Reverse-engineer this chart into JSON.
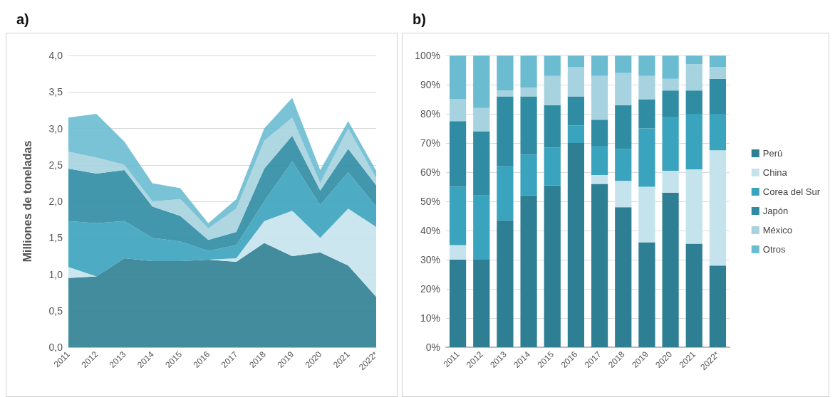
{
  "chart_data": [
    {
      "type": "area",
      "title": "a)",
      "ylabel": "Milliones de toneladas",
      "stacked": true,
      "grid": "y",
      "categories": [
        "2011",
        "2012",
        "2013",
        "2014",
        "2015",
        "2016",
        "2017",
        "2018",
        "2019",
        "2020",
        "2021",
        "2022*"
      ],
      "ylim": [
        0,
        4
      ],
      "yticks": [
        {
          "value": 0,
          "label": "0,0"
        },
        {
          "value": 0.5,
          "label": "0,5"
        },
        {
          "value": 1,
          "label": "1,0"
        },
        {
          "value": 1.5,
          "label": "1,5"
        },
        {
          "value": 2,
          "label": "2,0"
        },
        {
          "value": 2.5,
          "label": "2,5"
        },
        {
          "value": 3,
          "label": "3,0"
        },
        {
          "value": 3.5,
          "label": "3,5"
        },
        {
          "value": 4,
          "label": "4,0"
        }
      ],
      "series": [
        {
          "color": "#2e7f93",
          "values": [
            0.95,
            0.97,
            1.22,
            1.18,
            1.18,
            1.2,
            1.17,
            1.43,
            1.25,
            1.3,
            1.12,
            0.69
          ]
        },
        {
          "color": "#c5e3ec",
          "values": [
            0.15,
            0,
            0,
            0,
            0,
            0,
            0.05,
            0.3,
            0.62,
            0.2,
            0.78,
            0.96
          ]
        },
        {
          "color": "#3aa3bd",
          "values": [
            0.63,
            0.73,
            0.51,
            0.32,
            0.27,
            0.12,
            0.18,
            0.27,
            0.68,
            0.45,
            0.5,
            0.28
          ]
        },
        {
          "color": "#2f8ca3",
          "values": [
            0.72,
            0.68,
            0.7,
            0.43,
            0.35,
            0.15,
            0.18,
            0.45,
            0.35,
            0.2,
            0.32,
            0.29
          ]
        },
        {
          "color": "#a6d3df",
          "values": [
            0.23,
            0.22,
            0.07,
            0.07,
            0.23,
            0.16,
            0.32,
            0.38,
            0.25,
            0.1,
            0.28,
            0.1
          ]
        },
        {
          "color": "#6bbcd1",
          "values": [
            0.47,
            0.6,
            0.32,
            0.25,
            0.15,
            0.07,
            0.13,
            0.17,
            0.27,
            0.18,
            0.1,
            0.1
          ]
        }
      ]
    },
    {
      "type": "bar",
      "title": "b)",
      "stacked": true,
      "grid": "y",
      "legend": "right",
      "categories": [
        "2011",
        "2012",
        "2013",
        "2014",
        "2015",
        "2016",
        "2017",
        "2018",
        "2019",
        "2020",
        "2021",
        "2022*"
      ],
      "ylim": [
        0,
        100
      ],
      "yticks": [
        {
          "value": 0,
          "label": "0%"
        },
        {
          "value": 10,
          "label": "10%"
        },
        {
          "value": 20,
          "label": "20%"
        },
        {
          "value": 30,
          "label": "30%"
        },
        {
          "value": 40,
          "label": "40%"
        },
        {
          "value": 50,
          "label": "50%"
        },
        {
          "value": 60,
          "label": "60%"
        },
        {
          "value": 70,
          "label": "70%"
        },
        {
          "value": 80,
          "label": "80%"
        },
        {
          "value": 90,
          "label": "90%"
        },
        {
          "value": 100,
          "label": "100%"
        }
      ],
      "series": [
        {
          "name": "Perú",
          "color": "#2e7f93",
          "values": [
            30,
            30,
            43.5,
            52,
            55.5,
            70,
            56,
            48,
            36,
            53,
            35.5,
            28
          ]
        },
        {
          "name": "China",
          "color": "#c5e3ec",
          "values": [
            5,
            0,
            0,
            0,
            0,
            0,
            3,
            9,
            19,
            7.5,
            25.5,
            39.5
          ]
        },
        {
          "name": "Corea del Sur",
          "color": "#3aa3bd",
          "values": [
            20,
            22,
            18.5,
            14,
            13,
            6,
            10,
            11,
            20,
            18.5,
            19,
            12.5
          ]
        },
        {
          "name": "Japón",
          "color": "#2f8ca3",
          "values": [
            22.5,
            22,
            24,
            20,
            14.5,
            10,
            9,
            15,
            10,
            9,
            8,
            12
          ]
        },
        {
          "name": "México",
          "color": "#a6d3df",
          "values": [
            7.5,
            8,
            2,
            3,
            10,
            10,
            15,
            11,
            8,
            4,
            9,
            4
          ]
        },
        {
          "name": "Otros",
          "color": "#6bbcd1",
          "values": [
            15,
            18,
            12,
            11,
            7,
            4,
            7,
            6,
            7,
            8,
            3,
            4
          ]
        }
      ]
    }
  ]
}
